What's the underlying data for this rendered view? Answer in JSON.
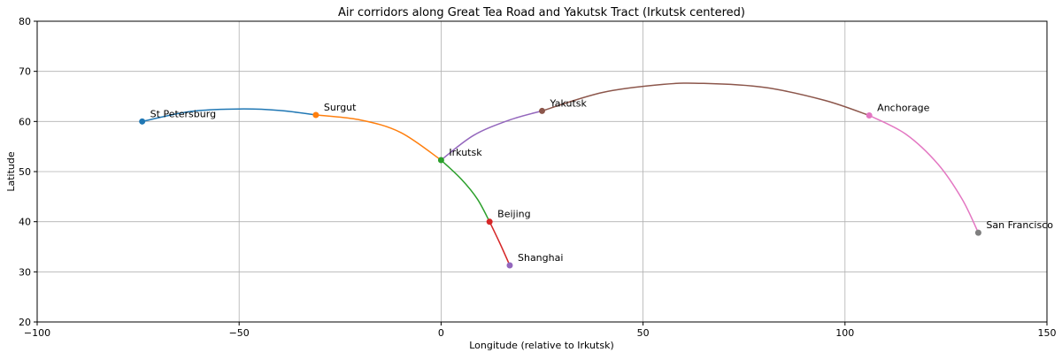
{
  "chart_data": {
    "type": "line",
    "title": "Air corridors along Great Tea Road and Yakutsk Tract (Irkutsk centered)",
    "xlabel": "Longitude (relative to Irkutsk)",
    "ylabel": "Latitude",
    "xlim": [
      -100,
      150
    ],
    "ylim": [
      20,
      80
    ],
    "xticks": [
      -100,
      -50,
      0,
      50,
      100,
      150
    ],
    "yticks": [
      20,
      30,
      40,
      50,
      60,
      70,
      80
    ],
    "grid": true,
    "cities": [
      {
        "label": "St Petersburg",
        "x": -74,
        "y": 60.0,
        "color": "#1f77b4"
      },
      {
        "label": "Surgut",
        "x": -31,
        "y": 61.3,
        "color": "#ff7f0e"
      },
      {
        "label": "Irkutsk",
        "x": 0,
        "y": 52.3,
        "color": "#2ca02c"
      },
      {
        "label": "Beijing",
        "x": 12,
        "y": 40.0,
        "color": "#d62728"
      },
      {
        "label": "Shanghai",
        "x": 17,
        "y": 31.3,
        "color": "#9467bd"
      },
      {
        "label": "Yakutsk",
        "x": 25,
        "y": 62.1,
        "color": "#8c564b"
      },
      {
        "label": "Anchorage",
        "x": 106,
        "y": 61.2,
        "color": "#e377c2"
      },
      {
        "label": "San Francisco",
        "x": 133,
        "y": 37.8,
        "color": "#7f7f7f"
      }
    ],
    "series": [
      {
        "color": "#1f77b4",
        "points": [
          [
            -74,
            60.0
          ],
          [
            -62,
            62.0
          ],
          [
            -50,
            62.5
          ],
          [
            -40,
            62.2
          ],
          [
            -31,
            61.3
          ]
        ]
      },
      {
        "color": "#ff7f0e",
        "points": [
          [
            -31,
            61.3
          ],
          [
            -20,
            60.3
          ],
          [
            -10,
            57.8
          ],
          [
            0,
            52.3
          ]
        ]
      },
      {
        "color": "#2ca02c",
        "points": [
          [
            0,
            52.3
          ],
          [
            5,
            48.5
          ],
          [
            9,
            44.5
          ],
          [
            12,
            40.0
          ]
        ]
      },
      {
        "color": "#d62728",
        "points": [
          [
            12,
            40.0
          ],
          [
            14.5,
            35.8
          ],
          [
            17,
            31.3
          ]
        ]
      },
      {
        "color": "#9467bd",
        "points": [
          [
            0,
            52.3
          ],
          [
            8,
            57.2
          ],
          [
            17,
            60.3
          ],
          [
            25,
            62.1
          ]
        ]
      },
      {
        "color": "#8c564b",
        "points": [
          [
            25,
            62.1
          ],
          [
            40,
            65.8
          ],
          [
            55,
            67.4
          ],
          [
            65,
            67.6
          ],
          [
            80,
            66.8
          ],
          [
            95,
            64.2
          ],
          [
            106,
            61.2
          ]
        ]
      },
      {
        "color": "#e377c2",
        "points": [
          [
            106,
            61.2
          ],
          [
            115,
            57.5
          ],
          [
            123,
            51.5
          ],
          [
            129,
            44.5
          ],
          [
            133,
            37.8
          ]
        ]
      }
    ]
  }
}
